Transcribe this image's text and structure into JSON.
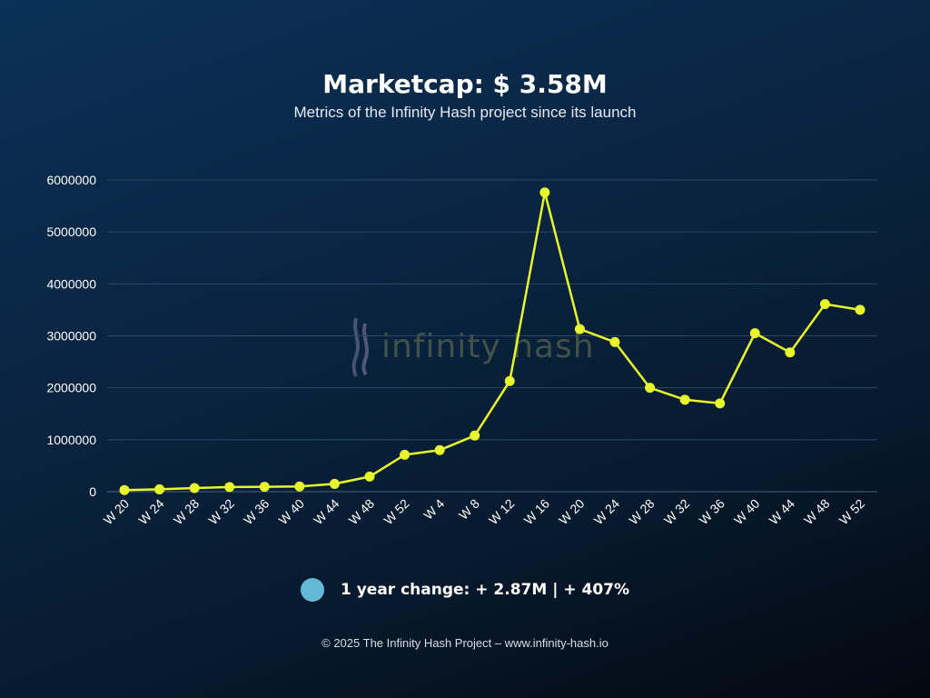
{
  "header": {
    "title": "Marketcap: $ 3.58M",
    "subtitle": "Metrics of the Infinity Hash project since its launch"
  },
  "watermark": {
    "text": "infinity hash",
    "icon": "infinity-hash-logo-icon"
  },
  "legend": {
    "text": "1 year change: + 2.87M | + 407%",
    "marker_color": "#63b9d6"
  },
  "footer": {
    "text": "© 2025 The Infinity Hash Project – www.infinity-hash.io"
  },
  "colors": {
    "line": "#e8f72c",
    "grid": "#2c4863",
    "axis_text": "#ffffff"
  },
  "chart_data": {
    "type": "line",
    "categories": [
      "W 20",
      "W 24",
      "W 28",
      "W 32",
      "W 36",
      "W 40",
      "W 44",
      "W 48",
      "W 52",
      "W 4",
      "W 8",
      "W 12",
      "W 16",
      "W 20",
      "W 24",
      "W 28",
      "W 32",
      "W 36",
      "W 40",
      "W 44",
      "W 48",
      "W 52"
    ],
    "values": [
      30000,
      45000,
      70000,
      90000,
      95000,
      100000,
      150000,
      290000,
      710000,
      800000,
      1080000,
      2130000,
      5760000,
      3130000,
      2880000,
      2000000,
      1770000,
      1700000,
      3050000,
      2680000,
      3610000,
      3500000
    ],
    "yticks": [
      0,
      1000000,
      2000000,
      3000000,
      4000000,
      5000000,
      6000000
    ],
    "ylim": [
      0,
      6000000
    ],
    "grid": true
  }
}
